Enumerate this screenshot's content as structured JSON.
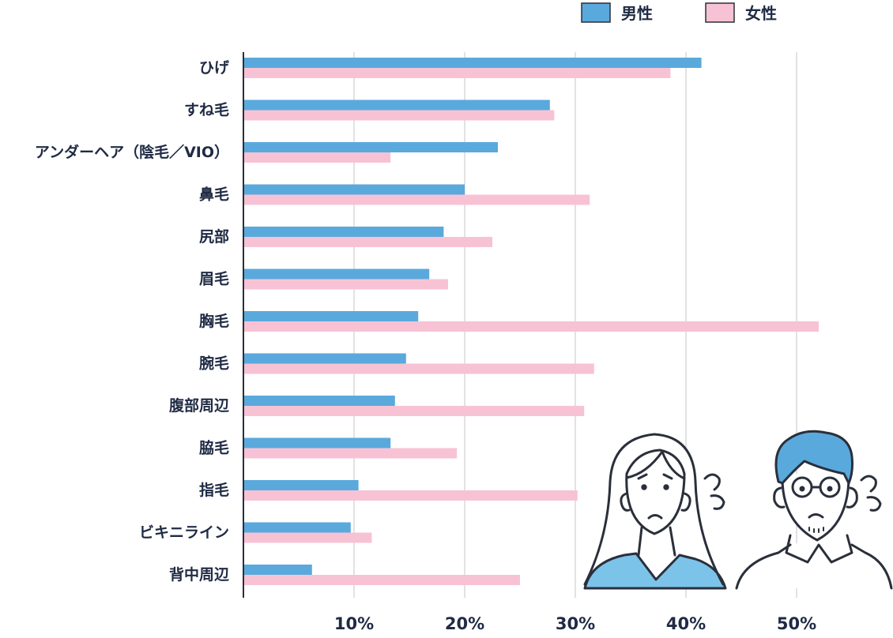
{
  "chart_data": {
    "type": "bar",
    "orientation": "horizontal",
    "categories": [
      "ひげ",
      "すね毛",
      "アンダーヘア（陰毛／VIO）",
      "鼻毛",
      "尻部",
      "眉毛",
      "胸毛",
      "腕毛",
      "腹部周辺",
      "脇毛",
      "指毛",
      "ビキニライン",
      "背中周辺"
    ],
    "series": [
      {
        "name": "男性",
        "color": "#5aa9dc",
        "values": [
          41.4,
          27.7,
          23.0,
          20.0,
          18.1,
          16.8,
          15.8,
          14.7,
          13.7,
          13.3,
          10.4,
          9.7,
          6.2
        ]
      },
      {
        "name": "女性",
        "color": "#f7c3d4",
        "values": [
          38.6,
          28.1,
          13.3,
          31.3,
          22.5,
          18.5,
          52.0,
          31.7,
          30.8,
          19.3,
          30.2,
          11.6,
          25.0
        ]
      }
    ],
    "xlim": [
      0,
      60
    ],
    "xticks": [
      10,
      20,
      30,
      40,
      50
    ],
    "xtick_labels": [
      "10%",
      "20%",
      "30%",
      "40%",
      "50%"
    ],
    "grid": true,
    "legend_position": "top-right",
    "title": "",
    "xlabel": "",
    "ylabel": ""
  },
  "illustration": {
    "icons": [
      "worried-woman-icon",
      "worried-man-icon",
      "sweat-drops-icon"
    ],
    "colors": {
      "shirt": "#7cc3ea",
      "hair_man": "#5aa9dc",
      "line": "#2a2f3a"
    }
  }
}
